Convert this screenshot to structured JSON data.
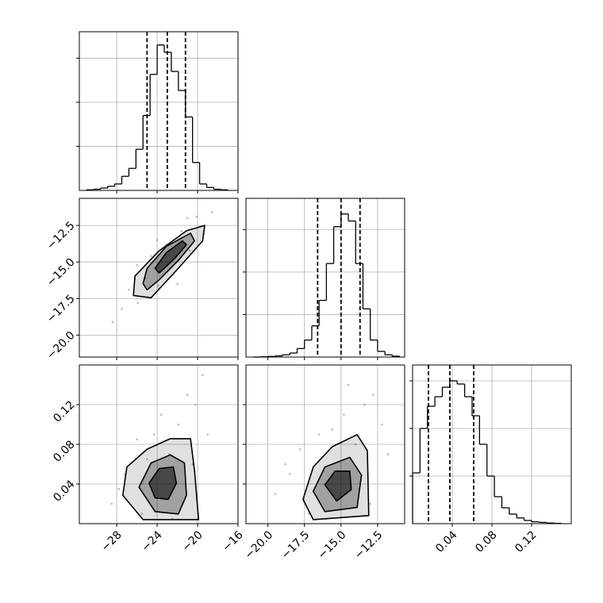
{
  "chart_data": {
    "type": "corner",
    "color": "#000000",
    "grid": true,
    "params": [
      {
        "lim": [
          -31.7,
          -16
        ],
        "ticks": [
          {
            "value": -28,
            "label": "−28"
          },
          {
            "value": -24,
            "label": "−24"
          },
          {
            "value": -20,
            "label": "−20"
          },
          {
            "value": -16,
            "label": "−16"
          }
        ],
        "quantiles": [
          -25.0,
          -23.0,
          -21.2
        ],
        "hist": {
          "bins": [
            -31,
            -30.3,
            -29.6,
            -28.9,
            -28.2,
            -27.5,
            -26.8,
            -26.1,
            -25.4,
            -24.7,
            -24,
            -23.3,
            -22.6,
            -21.9,
            -21.2,
            -20.5,
            -19.8,
            -19.1,
            -18.4,
            -17.7,
            -17
          ],
          "counts": [
            2,
            4,
            8,
            14,
            22,
            48,
            75,
            140,
            255,
            395,
            495,
            470,
            405,
            340,
            250,
            95,
            22,
            10,
            4,
            2
          ],
          "ylim": [
            0,
            540
          ],
          "yticks": [
            150,
            300,
            450
          ]
        }
      },
      {
        "lim": [
          -21.5,
          -10.65
        ],
        "ticks": [
          {
            "value": -20,
            "label": "−20.0"
          },
          {
            "value": -17.5,
            "label": "−17.5"
          },
          {
            "value": -15,
            "label": "−15.0"
          },
          {
            "value": -12.5,
            "label": "−12.5"
          }
        ],
        "quantiles": [
          -16.6,
          -15.0,
          -13.7
        ],
        "hist": {
          "bins": [
            -21,
            -20.5,
            -20,
            -19.5,
            -19,
            -18.5,
            -18,
            -17.5,
            -17,
            -16.5,
            -16,
            -15.5,
            -15,
            -14.5,
            -14,
            -13.5,
            -13,
            -12.5,
            -12,
            -11.5,
            -11
          ],
          "counts": [
            0,
            1,
            2,
            4,
            8,
            14,
            30,
            60,
            110,
            200,
            330,
            460,
            505,
            480,
            330,
            170,
            60,
            20,
            8,
            3
          ],
          "ylim": [
            0,
            560
          ],
          "yticks": [
            150,
            300,
            450
          ]
        }
      },
      {
        "lim": [
          0,
          0.16
        ],
        "ticks": [
          0.04,
          0.08,
          0.12
        ],
        "quantiles": [
          0.016,
          0.0376,
          0.0616
        ],
        "hist": {
          "bins": [
            0,
            0.0075,
            0.015,
            0.0225,
            0.03,
            0.0375,
            0.045,
            0.0525,
            0.06,
            0.0675,
            0.075,
            0.0825,
            0.09,
            0.0975,
            0.105,
            0.1125,
            0.12,
            0.1275,
            0.135,
            0.1425,
            0.15
          ],
          "counts": [
            160,
            300,
            370,
            400,
            430,
            450,
            440,
            400,
            340,
            250,
            150,
            85,
            50,
            30,
            18,
            10,
            6,
            4,
            2,
            1
          ],
          "ylim": [
            0,
            500
          ],
          "yticks": [
            150,
            300,
            450
          ]
        }
      }
    ],
    "pairs": [
      {
        "points": {
          "x": [
            -27.5,
            -26.8,
            -25.9,
            -25.2,
            -24.6,
            -23.9,
            -23.1,
            -22.4,
            -21.6,
            -20.8,
            -20.1,
            -19.4,
            -28.4,
            -18.6,
            -24.0,
            -22.0,
            -26.0,
            -21.0
          ],
          "y": [
            -18.2,
            -16.9,
            -17.8,
            -16.1,
            -14.6,
            -16.6,
            -13.8,
            -15.9,
            -12.9,
            -14.2,
            -11.9,
            -13.1,
            -19.1,
            -11.6,
            -13.5,
            -16.5,
            -15.2,
            -12.0
          ]
        },
        "contours": [
          {
            "x": [
              -26.35,
              -26.2,
              -23.84,
              -21.1,
              -19.3,
              -19.5,
              -21.9,
              -24.6
            ],
            "y": [
              -17.29,
              -15.96,
              -14.26,
              -12.87,
              -12.5,
              -13.56,
              -15.43,
              -17.45
            ]
          },
          {
            "x": [
              -25.4,
              -25.0,
              -23.1,
              -20.7,
              -20.3,
              -21.9,
              -23.8,
              -25.0
            ],
            "y": [
              -16.49,
              -15.43,
              -13.94,
              -13.03,
              -13.56,
              -14.89,
              -16.22,
              -16.9
            ]
          },
          {
            "x": [
              -24.2,
              -23.1,
              -21.5,
              -21.1,
              -22.3,
              -23.8
            ],
            "y": [
              -15.43,
              -14.36,
              -13.56,
              -13.83,
              -14.79,
              -15.75
            ]
          }
        ]
      },
      {
        "points": {
          "x": [
            -28.5,
            -27.2,
            -26.0,
            -25.5,
            -24.3,
            -23.6,
            -22.8,
            -21.9,
            -21.0,
            -20.2,
            -19.5,
            -19.0,
            -25.0,
            -22.5,
            -20.5,
            -27.8
          ],
          "y": [
            0.02,
            0.05,
            0.085,
            0.01,
            0.09,
            0.11,
            0.07,
            0.1,
            0.13,
            0.12,
            0.15,
            0.09,
            0.065,
            0.005,
            0.06,
            0.035
          ]
        },
        "contours": [
          {
            "x": [
              -27.4,
              -27.0,
              -25.0,
              -22.7,
              -20.7,
              -20.3,
              -19.9,
              -25.4
            ],
            "y": [
              0.0286,
              0.0571,
              0.0751,
              0.0857,
              0.0857,
              0.0531,
              0.0041,
              0.0041
            ]
          },
          {
            "x": [
              -25.8,
              -24.6,
              -22.7,
              -21.3,
              -21.1,
              -21.9,
              -24.2
            ],
            "y": [
              0.0367,
              0.0612,
              0.0694,
              0.0612,
              0.0286,
              0.0098,
              0.0122
            ]
          },
          {
            "x": [
              -24.8,
              -23.8,
              -22.4,
              -22.1,
              -22.9,
              -24.2
            ],
            "y": [
              0.0408,
              0.0555,
              0.0571,
              0.0408,
              0.0245,
              0.0261
            ]
          }
        ]
      },
      {
        "points": {
          "x": [
            -19.5,
            -18.5,
            -17.8,
            -17.2,
            -16.5,
            -15.6,
            -14.8,
            -14.0,
            -13.4,
            -12.8,
            -12.2,
            -16.0,
            -14.5,
            -18.8,
            -13.0,
            -11.8
          ],
          "y": [
            0.03,
            0.05,
            0.075,
            0.01,
            0.09,
            0.095,
            0.11,
            0.08,
            0.12,
            0.13,
            0.1,
            0.005,
            0.14,
            0.06,
            0.02,
            0.07
          ]
        },
        "contours": [
          {
            "x": [
              -17.6,
              -16.9,
              -15.6,
              -13.9,
              -13.2,
              -13.1,
              -16.9
            ],
            "y": [
              0.0245,
              0.0571,
              0.0776,
              0.0898,
              0.0735,
              0.0082,
              0.0041
            ]
          },
          {
            "x": [
              -16.9,
              -16.1,
              -14.4,
              -13.6,
              -13.9,
              -16.1
            ],
            "y": [
              0.0327,
              0.0571,
              0.0669,
              0.049,
              0.0163,
              0.0122
            ]
          },
          {
            "x": [
              -16.1,
              -15.4,
              -14.4,
              -14.3,
              -15.3
            ],
            "y": [
              0.0392,
              0.053,
              0.053,
              0.0343,
              0.0229
            ]
          }
        ]
      }
    ]
  }
}
